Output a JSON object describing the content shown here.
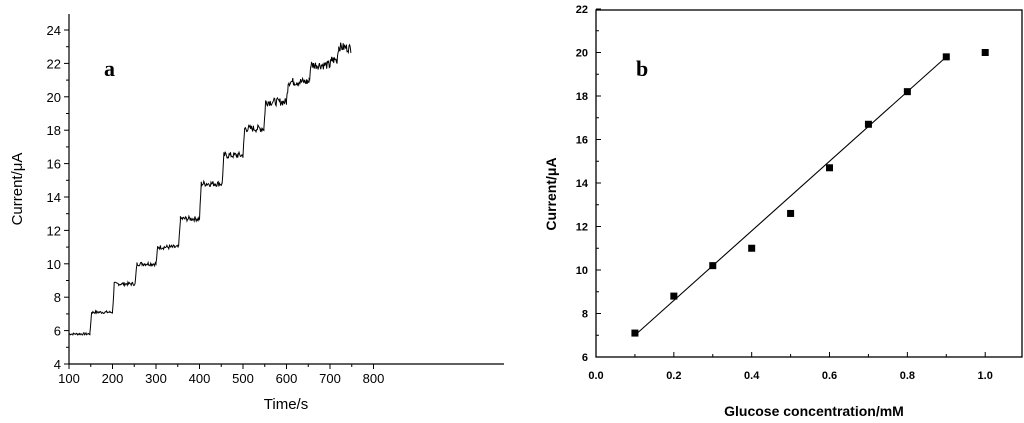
{
  "chart_data": [
    {
      "type": "line",
      "panel_label": "a",
      "xlabel": "Time/s",
      "ylabel": "Current/μA",
      "xlim": [
        100,
        850
      ],
      "ylim": [
        4,
        25
      ],
      "xticks": [
        100,
        200,
        300,
        400,
        500,
        600,
        700,
        800
      ],
      "yticks": [
        4,
        6,
        8,
        10,
        12,
        14,
        16,
        18,
        20,
        22,
        24
      ],
      "grid": false,
      "x": [
        100,
        148,
        152,
        200,
        204,
        252,
        256,
        300,
        304,
        352,
        356,
        400,
        404,
        452,
        456,
        500,
        504,
        548,
        552,
        600,
        604,
        652,
        656,
        700,
        704,
        716,
        720,
        748
      ],
      "y": [
        5.8,
        5.8,
        7.1,
        7.1,
        8.8,
        8.8,
        10.0,
        10.0,
        11.0,
        11.0,
        12.7,
        12.7,
        14.8,
        14.8,
        16.5,
        16.5,
        18.1,
        18.1,
        19.7,
        19.7,
        20.9,
        20.9,
        21.9,
        21.9,
        22.2,
        22.2,
        23.0,
        22.9
      ]
    },
    {
      "type": "scatter",
      "panel_label": "b",
      "xlabel": "Glucose concentration/mM",
      "ylabel": "Current/μA",
      "xlim": [
        0.0,
        1.1
      ],
      "ylim": [
        6,
        22
      ],
      "xticks": [
        "0.0",
        "0.2",
        "0.4",
        "0.6",
        "0.8",
        "1.0"
      ],
      "yticks": [
        "6",
        "8",
        "10",
        "12",
        "14",
        "16",
        "18",
        "20",
        "22"
      ],
      "grid": false,
      "x": [
        0.1,
        0.2,
        0.3,
        0.4,
        0.5,
        0.6,
        0.7,
        0.8,
        0.9,
        1.0
      ],
      "y": [
        7.1,
        8.8,
        10.2,
        11.0,
        12.6,
        14.7,
        16.7,
        18.2,
        19.8,
        20.0
      ],
      "fit_line": {
        "x": [
          0.1,
          0.9
        ],
        "y": [
          7.0,
          19.8
        ]
      }
    }
  ]
}
